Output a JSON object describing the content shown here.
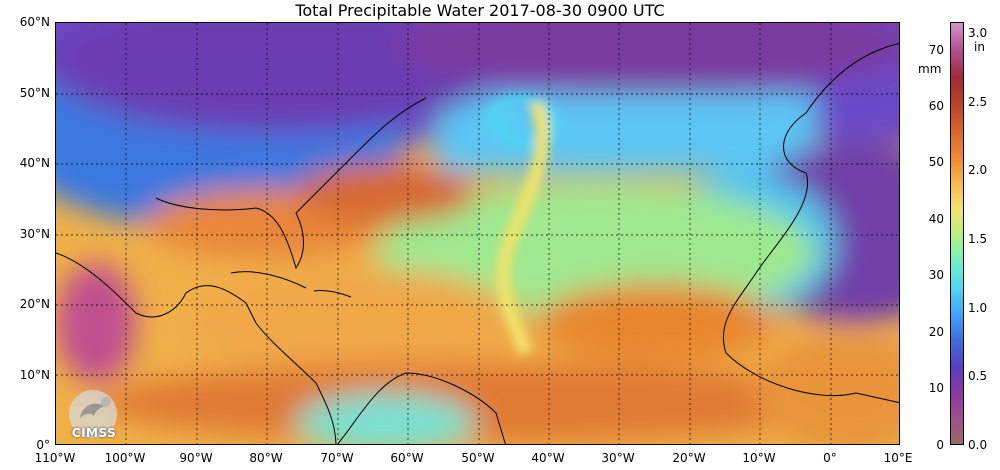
{
  "title": "Total Precipitable Water  2017-08-30 0900 UTC",
  "lat_labels": [
    "60°N",
    "50°N",
    "40°N",
    "30°N",
    "20°N",
    "10°N",
    "0°"
  ],
  "lon_labels": [
    "110°W",
    "100°W",
    "90°W",
    "80°W",
    "70°W",
    "60°W",
    "50°W",
    "40°W",
    "30°W",
    "20°W",
    "10°W",
    "0°",
    "10°E"
  ],
  "colorbar": {
    "mm_unit": "mm",
    "in_unit": "in",
    "mm_ticks": [
      "70",
      "60",
      "50",
      "40",
      "30",
      "20",
      "10",
      "0"
    ],
    "in_ticks": [
      "3.0",
      "2.5",
      "2.0",
      "1.5",
      "1.0",
      "0.5",
      "0.0"
    ]
  },
  "logo": {
    "text": "CIMSS",
    "icon": "cimss-logo-icon"
  },
  "map": {
    "lat_range": [
      0,
      60
    ],
    "lon_range": [
      -110,
      10
    ],
    "grid": true,
    "colors": {
      "dry": "#8a3aa0",
      "very_dry": "#a0508a",
      "moist": "#3ea6ff",
      "humid": "#4fd6f2",
      "wet": "#f2e36a",
      "very_wet": "#ee8a30",
      "saturated": "#b8422a"
    }
  }
}
